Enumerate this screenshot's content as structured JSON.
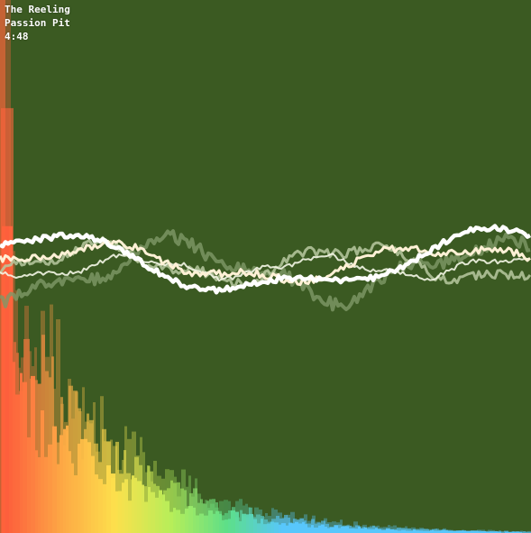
{
  "track": {
    "title": "The Reeling",
    "artist": "Passion Pit",
    "time": "4:48"
  },
  "visualizer": {
    "background": "#3b5a22",
    "waveform_colors": [
      "#ffffff",
      "#fff1d6",
      "#f4f6e6",
      "#b9c9a0",
      "#7f9968"
    ],
    "spectrum_gradient": [
      "#ff5a3c",
      "#ffa645",
      "#ffe24d",
      "#b8f05a",
      "#5ee08a",
      "#58c8ff"
    ]
  }
}
